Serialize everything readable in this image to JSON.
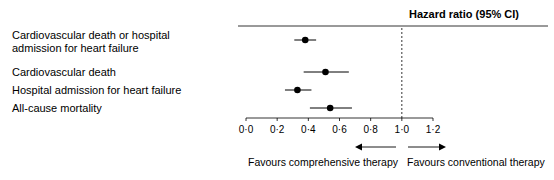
{
  "chart_data": {
    "type": "forest",
    "title": "Hazard ratio (95% CI)",
    "categories": [
      "Cardiovascular death or hospital admission for heart failure",
      "Cardiovascular death",
      "Hospital admission for heart failure",
      "All-cause mortality"
    ],
    "values": [
      0.38,
      0.51,
      0.33,
      0.54
    ],
    "ci_low": [
      0.31,
      0.37,
      0.25,
      0.41
    ],
    "ci_high": [
      0.45,
      0.66,
      0.42,
      0.68
    ],
    "color": "#000000",
    "xlim": [
      0,
      1.2
    ],
    "xticks": [
      {
        "value": 0,
        "label": "0·0"
      },
      {
        "value": 0.2,
        "label": "0·2"
      },
      {
        "value": 0.4,
        "label": "0·4"
      },
      {
        "value": 0.6,
        "label": "0·6"
      },
      {
        "value": 0.8,
        "label": "0·8"
      },
      {
        "value": 1,
        "label": "1·0"
      },
      {
        "value": 1.2,
        "label": "1·2"
      }
    ],
    "reference_line": 1,
    "annotations": [
      "Favours comprehensive therapy",
      "Favours conventional therapy"
    ]
  }
}
